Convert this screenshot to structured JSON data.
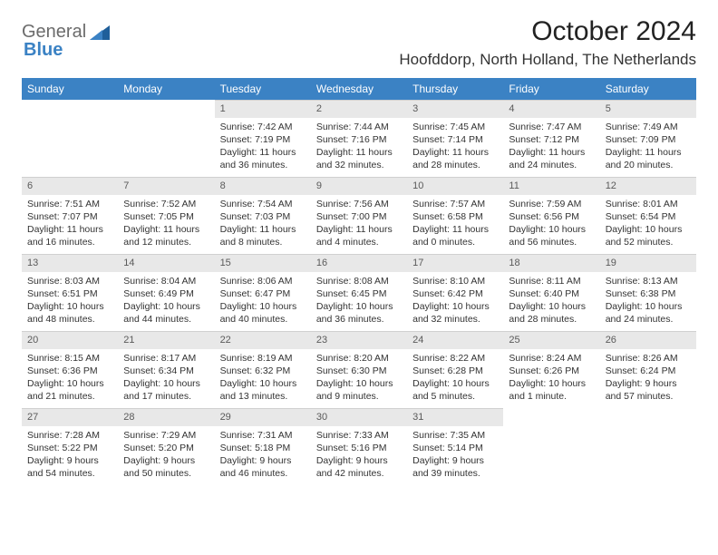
{
  "brand": {
    "part1": "General",
    "part2": "Blue"
  },
  "title": "October 2024",
  "location": "Hoofddorp, North Holland, The Netherlands",
  "day_headers": [
    "Sunday",
    "Monday",
    "Tuesday",
    "Wednesday",
    "Thursday",
    "Friday",
    "Saturday"
  ],
  "colors": {
    "header_bg": "#3b82c4",
    "header_fg": "#ffffff",
    "daynum_bg": "#e8e8e8",
    "text": "#333333"
  },
  "weeks": [
    [
      {
        "num": "",
        "sunrise": "",
        "sunset": "",
        "daylight": ""
      },
      {
        "num": "",
        "sunrise": "",
        "sunset": "",
        "daylight": ""
      },
      {
        "num": "1",
        "sunrise": "Sunrise: 7:42 AM",
        "sunset": "Sunset: 7:19 PM",
        "daylight": "Daylight: 11 hours and 36 minutes."
      },
      {
        "num": "2",
        "sunrise": "Sunrise: 7:44 AM",
        "sunset": "Sunset: 7:16 PM",
        "daylight": "Daylight: 11 hours and 32 minutes."
      },
      {
        "num": "3",
        "sunrise": "Sunrise: 7:45 AM",
        "sunset": "Sunset: 7:14 PM",
        "daylight": "Daylight: 11 hours and 28 minutes."
      },
      {
        "num": "4",
        "sunrise": "Sunrise: 7:47 AM",
        "sunset": "Sunset: 7:12 PM",
        "daylight": "Daylight: 11 hours and 24 minutes."
      },
      {
        "num": "5",
        "sunrise": "Sunrise: 7:49 AM",
        "sunset": "Sunset: 7:09 PM",
        "daylight": "Daylight: 11 hours and 20 minutes."
      }
    ],
    [
      {
        "num": "6",
        "sunrise": "Sunrise: 7:51 AM",
        "sunset": "Sunset: 7:07 PM",
        "daylight": "Daylight: 11 hours and 16 minutes."
      },
      {
        "num": "7",
        "sunrise": "Sunrise: 7:52 AM",
        "sunset": "Sunset: 7:05 PM",
        "daylight": "Daylight: 11 hours and 12 minutes."
      },
      {
        "num": "8",
        "sunrise": "Sunrise: 7:54 AM",
        "sunset": "Sunset: 7:03 PM",
        "daylight": "Daylight: 11 hours and 8 minutes."
      },
      {
        "num": "9",
        "sunrise": "Sunrise: 7:56 AM",
        "sunset": "Sunset: 7:00 PM",
        "daylight": "Daylight: 11 hours and 4 minutes."
      },
      {
        "num": "10",
        "sunrise": "Sunrise: 7:57 AM",
        "sunset": "Sunset: 6:58 PM",
        "daylight": "Daylight: 11 hours and 0 minutes."
      },
      {
        "num": "11",
        "sunrise": "Sunrise: 7:59 AM",
        "sunset": "Sunset: 6:56 PM",
        "daylight": "Daylight: 10 hours and 56 minutes."
      },
      {
        "num": "12",
        "sunrise": "Sunrise: 8:01 AM",
        "sunset": "Sunset: 6:54 PM",
        "daylight": "Daylight: 10 hours and 52 minutes."
      }
    ],
    [
      {
        "num": "13",
        "sunrise": "Sunrise: 8:03 AM",
        "sunset": "Sunset: 6:51 PM",
        "daylight": "Daylight: 10 hours and 48 minutes."
      },
      {
        "num": "14",
        "sunrise": "Sunrise: 8:04 AM",
        "sunset": "Sunset: 6:49 PM",
        "daylight": "Daylight: 10 hours and 44 minutes."
      },
      {
        "num": "15",
        "sunrise": "Sunrise: 8:06 AM",
        "sunset": "Sunset: 6:47 PM",
        "daylight": "Daylight: 10 hours and 40 minutes."
      },
      {
        "num": "16",
        "sunrise": "Sunrise: 8:08 AM",
        "sunset": "Sunset: 6:45 PM",
        "daylight": "Daylight: 10 hours and 36 minutes."
      },
      {
        "num": "17",
        "sunrise": "Sunrise: 8:10 AM",
        "sunset": "Sunset: 6:42 PM",
        "daylight": "Daylight: 10 hours and 32 minutes."
      },
      {
        "num": "18",
        "sunrise": "Sunrise: 8:11 AM",
        "sunset": "Sunset: 6:40 PM",
        "daylight": "Daylight: 10 hours and 28 minutes."
      },
      {
        "num": "19",
        "sunrise": "Sunrise: 8:13 AM",
        "sunset": "Sunset: 6:38 PM",
        "daylight": "Daylight: 10 hours and 24 minutes."
      }
    ],
    [
      {
        "num": "20",
        "sunrise": "Sunrise: 8:15 AM",
        "sunset": "Sunset: 6:36 PM",
        "daylight": "Daylight: 10 hours and 21 minutes."
      },
      {
        "num": "21",
        "sunrise": "Sunrise: 8:17 AM",
        "sunset": "Sunset: 6:34 PM",
        "daylight": "Daylight: 10 hours and 17 minutes."
      },
      {
        "num": "22",
        "sunrise": "Sunrise: 8:19 AM",
        "sunset": "Sunset: 6:32 PM",
        "daylight": "Daylight: 10 hours and 13 minutes."
      },
      {
        "num": "23",
        "sunrise": "Sunrise: 8:20 AM",
        "sunset": "Sunset: 6:30 PM",
        "daylight": "Daylight: 10 hours and 9 minutes."
      },
      {
        "num": "24",
        "sunrise": "Sunrise: 8:22 AM",
        "sunset": "Sunset: 6:28 PM",
        "daylight": "Daylight: 10 hours and 5 minutes."
      },
      {
        "num": "25",
        "sunrise": "Sunrise: 8:24 AM",
        "sunset": "Sunset: 6:26 PM",
        "daylight": "Daylight: 10 hours and 1 minute."
      },
      {
        "num": "26",
        "sunrise": "Sunrise: 8:26 AM",
        "sunset": "Sunset: 6:24 PM",
        "daylight": "Daylight: 9 hours and 57 minutes."
      }
    ],
    [
      {
        "num": "27",
        "sunrise": "Sunrise: 7:28 AM",
        "sunset": "Sunset: 5:22 PM",
        "daylight": "Daylight: 9 hours and 54 minutes."
      },
      {
        "num": "28",
        "sunrise": "Sunrise: 7:29 AM",
        "sunset": "Sunset: 5:20 PM",
        "daylight": "Daylight: 9 hours and 50 minutes."
      },
      {
        "num": "29",
        "sunrise": "Sunrise: 7:31 AM",
        "sunset": "Sunset: 5:18 PM",
        "daylight": "Daylight: 9 hours and 46 minutes."
      },
      {
        "num": "30",
        "sunrise": "Sunrise: 7:33 AM",
        "sunset": "Sunset: 5:16 PM",
        "daylight": "Daylight: 9 hours and 42 minutes."
      },
      {
        "num": "31",
        "sunrise": "Sunrise: 7:35 AM",
        "sunset": "Sunset: 5:14 PM",
        "daylight": "Daylight: 9 hours and 39 minutes."
      },
      {
        "num": "",
        "sunrise": "",
        "sunset": "",
        "daylight": ""
      },
      {
        "num": "",
        "sunrise": "",
        "sunset": "",
        "daylight": ""
      }
    ]
  ]
}
